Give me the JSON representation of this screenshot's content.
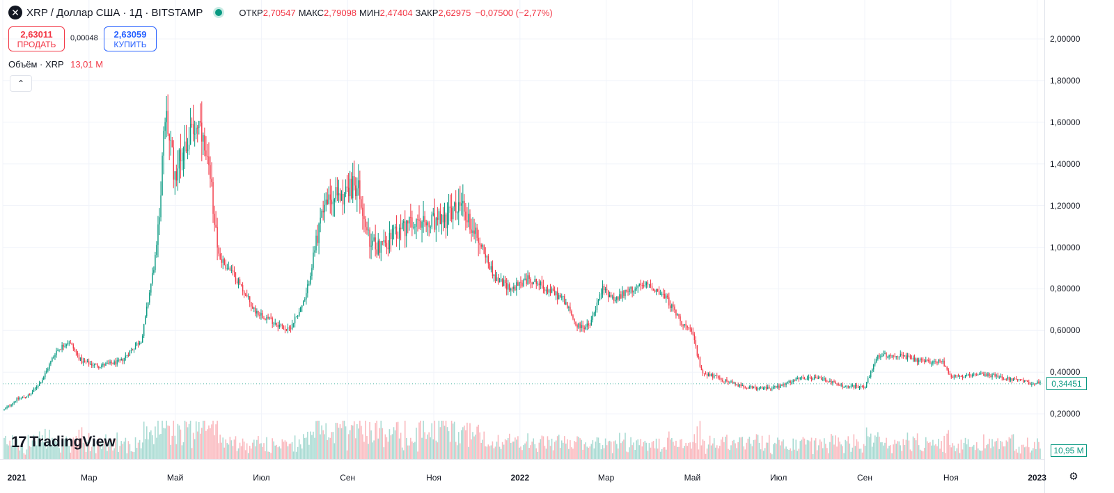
{
  "header": {
    "symbol_icon": "close-circle-icon",
    "title": "XRP / Доллар США · 1Д · BITSTAMP",
    "ohlc": {
      "open_label": "ОТКР",
      "open": "2,70547",
      "high_label": "МАКС",
      "high": "2,79098",
      "low_label": "МИН",
      "low": "2,47404",
      "close_label": "ЗАКР",
      "close": "2,62975",
      "change": "−0,07500 (−2,77%)"
    }
  },
  "trade": {
    "sell_price": "2,63011",
    "sell_label": "ПРОДАТЬ",
    "spread": "0,00048",
    "buy_price": "2,63059",
    "buy_label": "КУПИТЬ"
  },
  "volume_legend": {
    "label": "Объём · XRP",
    "value": "13,01 M"
  },
  "collapse_icon": "chevron-up-icon",
  "price_tag": "0,34451",
  "volume_tag": "10,95 M",
  "logo": {
    "mark": "17",
    "text": "TradingView"
  },
  "settings_icon": "gear-icon",
  "colors": {
    "up": "#089981",
    "down": "#f23645",
    "grid": "#f0f3fa"
  },
  "chart_data": {
    "type": "candlestick",
    "title": "XRP / Доллар США · 1Д · BITSTAMP",
    "y_ticks": [
      "2,00000",
      "1,80000",
      "1,60000",
      "1,40000",
      "1,20000",
      "1,00000",
      "0,80000",
      "0,60000",
      "0,40000",
      "0,20000"
    ],
    "y_tick_values": [
      2.0,
      1.8,
      1.6,
      1.4,
      1.2,
      1.0,
      0.8,
      0.6,
      0.4,
      0.2
    ],
    "ylim": [
      0.0,
      2.1
    ],
    "x_ticks": [
      {
        "label": "2021",
        "date": "2021-01",
        "bold": true
      },
      {
        "label": "Мар",
        "date": "2021-03"
      },
      {
        "label": "Май",
        "date": "2021-05"
      },
      {
        "label": "Июл",
        "date": "2021-07"
      },
      {
        "label": "Сен",
        "date": "2021-09"
      },
      {
        "label": "Ноя",
        "date": "2021-11"
      },
      {
        "label": "2022",
        "date": "2022-01",
        "bold": true
      },
      {
        "label": "Мар",
        "date": "2022-03"
      },
      {
        "label": "Май",
        "date": "2022-05"
      },
      {
        "label": "Июл",
        "date": "2022-07"
      },
      {
        "label": "Сен",
        "date": "2022-09"
      },
      {
        "label": "Ноя",
        "date": "2022-11"
      },
      {
        "label": "2023",
        "date": "2023-01",
        "bold": true
      }
    ],
    "x_tick_months": [
      0,
      2,
      4,
      6,
      8,
      10,
      12,
      14,
      16,
      18,
      20,
      22,
      24
    ],
    "price_path": [
      [
        0,
        0.22
      ],
      [
        0.3,
        0.27
      ],
      [
        0.6,
        0.29
      ],
      [
        0.9,
        0.37
      ],
      [
        1.2,
        0.5
      ],
      [
        1.5,
        0.55
      ],
      [
        1.8,
        0.45
      ],
      [
        2.2,
        0.43
      ],
      [
        2.7,
        0.45
      ],
      [
        3.2,
        0.56
      ],
      [
        3.55,
        1.0
      ],
      [
        3.75,
        1.65
      ],
      [
        3.95,
        1.35
      ],
      [
        4.2,
        1.5
      ],
      [
        4.5,
        1.6
      ],
      [
        4.8,
        1.3
      ],
      [
        5.0,
        0.95
      ],
      [
        5.4,
        0.85
      ],
      [
        5.8,
        0.7
      ],
      [
        6.2,
        0.65
      ],
      [
        6.6,
        0.6
      ],
      [
        7.0,
        0.75
      ],
      [
        7.4,
        1.2
      ],
      [
        7.8,
        1.25
      ],
      [
        8.2,
        1.3
      ],
      [
        8.5,
        1.0
      ],
      [
        8.9,
        1.02
      ],
      [
        9.3,
        1.1
      ],
      [
        9.8,
        1.1
      ],
      [
        10.2,
        1.13
      ],
      [
        10.6,
        1.2
      ],
      [
        11.0,
        1.05
      ],
      [
        11.4,
        0.85
      ],
      [
        11.8,
        0.8
      ],
      [
        12.2,
        0.85
      ],
      [
        12.6,
        0.8
      ],
      [
        13.0,
        0.75
      ],
      [
        13.3,
        0.62
      ],
      [
        13.6,
        0.62
      ],
      [
        13.9,
        0.8
      ],
      [
        14.2,
        0.75
      ],
      [
        14.6,
        0.8
      ],
      [
        15.0,
        0.82
      ],
      [
        15.4,
        0.75
      ],
      [
        15.7,
        0.65
      ],
      [
        16.0,
        0.58
      ],
      [
        16.2,
        0.4
      ],
      [
        16.6,
        0.37
      ],
      [
        17.0,
        0.34
      ],
      [
        17.5,
        0.32
      ],
      [
        18.0,
        0.33
      ],
      [
        18.5,
        0.37
      ],
      [
        19.0,
        0.37
      ],
      [
        19.5,
        0.33
      ],
      [
        20.0,
        0.33
      ],
      [
        20.3,
        0.48
      ],
      [
        20.8,
        0.48
      ],
      [
        21.3,
        0.45
      ],
      [
        21.8,
        0.45
      ],
      [
        22.0,
        0.38
      ],
      [
        22.4,
        0.38
      ],
      [
        22.8,
        0.39
      ],
      [
        23.3,
        0.37
      ],
      [
        23.8,
        0.35
      ],
      [
        24.1,
        0.345
      ]
    ],
    "last_price": 0.34451,
    "last_volume": "10,95 M"
  }
}
